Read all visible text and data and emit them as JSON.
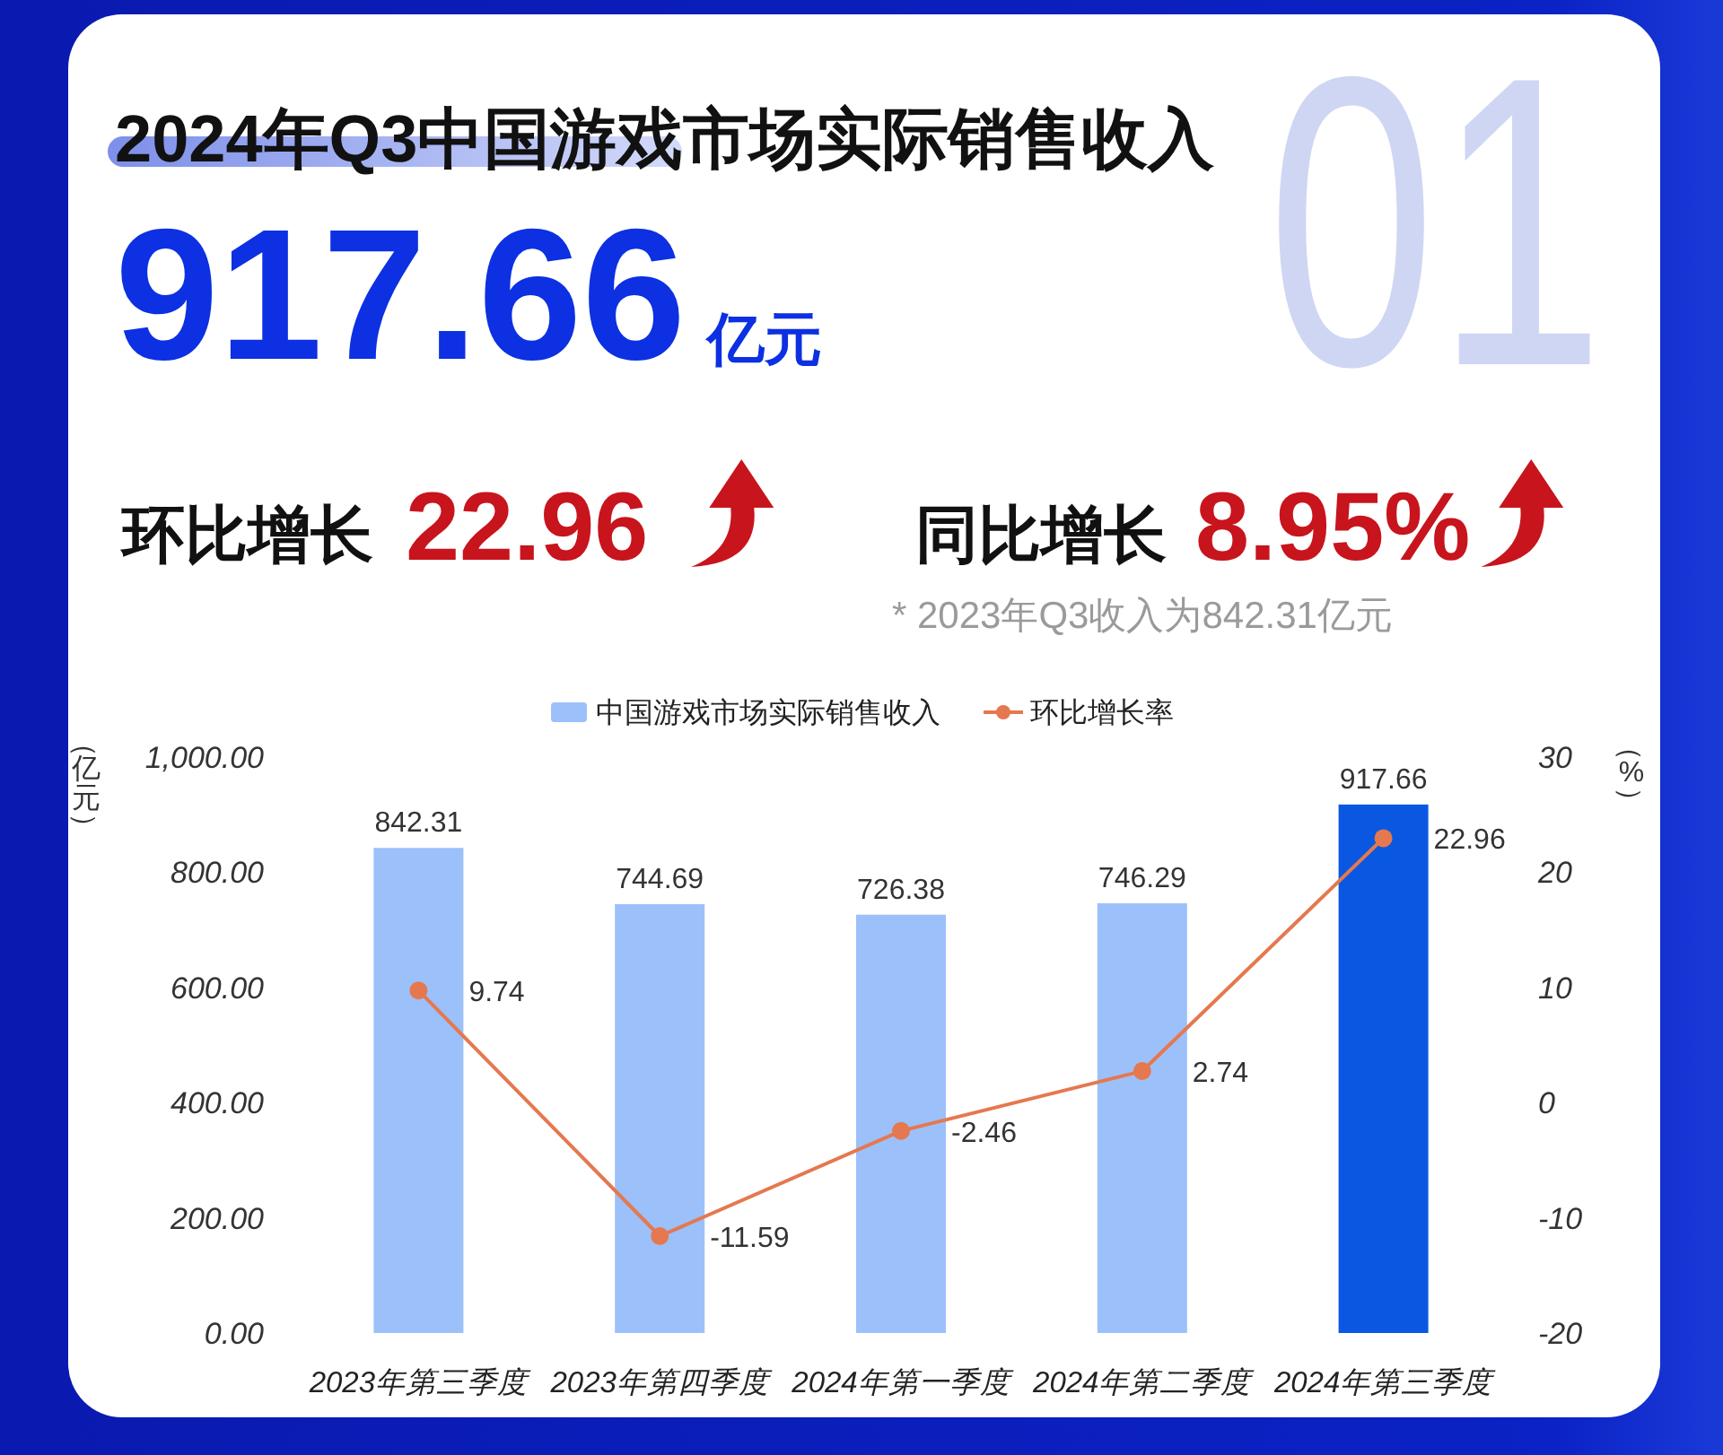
{
  "chart_data": {
    "type": "bar",
    "title": "2024年Q3中国游戏市场实际销售收入",
    "annotations": [
      "01",
      "917.66",
      "亿元",
      "环比增长",
      "22.96",
      "同比增长",
      "8.95%",
      "* 2023年Q3收入为842.31亿元"
    ],
    "ylabel": "（亿元）",
    "y2label": "（%）",
    "categories": [
      "2023年第三季度",
      "2023年第四季度",
      "2024年第一季度",
      "2024年第二季度",
      "2024年第三季度"
    ],
    "series": [
      {
        "name": "中国游戏市场实际销售收入",
        "color": "#9cc0fa",
        "colors": [
          "#9cc0fa",
          "#9cc0fa",
          "#9cc0fa",
          "#9cc0fa",
          "#0a58e2"
        ],
        "values": [
          842.31,
          744.69,
          726.38,
          746.29,
          917.66
        ]
      },
      {
        "name": "环比增长率",
        "type": "line",
        "axis": "y2",
        "color": "#e5784f",
        "values": [
          9.74,
          -11.59,
          -2.46,
          2.74,
          22.96
        ]
      }
    ],
    "ylim": [
      0,
      1000
    ],
    "yticks": [
      {
        "value": 0,
        "label": "0.00"
      },
      {
        "value": 200,
        "label": "200.00"
      },
      {
        "value": 400,
        "label": "400.00"
      },
      {
        "value": 600,
        "label": "600.00"
      },
      {
        "value": 800,
        "label": "800.00"
      },
      {
        "value": 1000,
        "label": "1,000.00"
      }
    ],
    "y2lim": [
      -20,
      30
    ],
    "y2ticks": [
      -20,
      -10,
      0,
      10,
      20,
      30
    ],
    "marker": "circle",
    "data_labels": true,
    "legend": "top",
    "grid": false
  }
}
